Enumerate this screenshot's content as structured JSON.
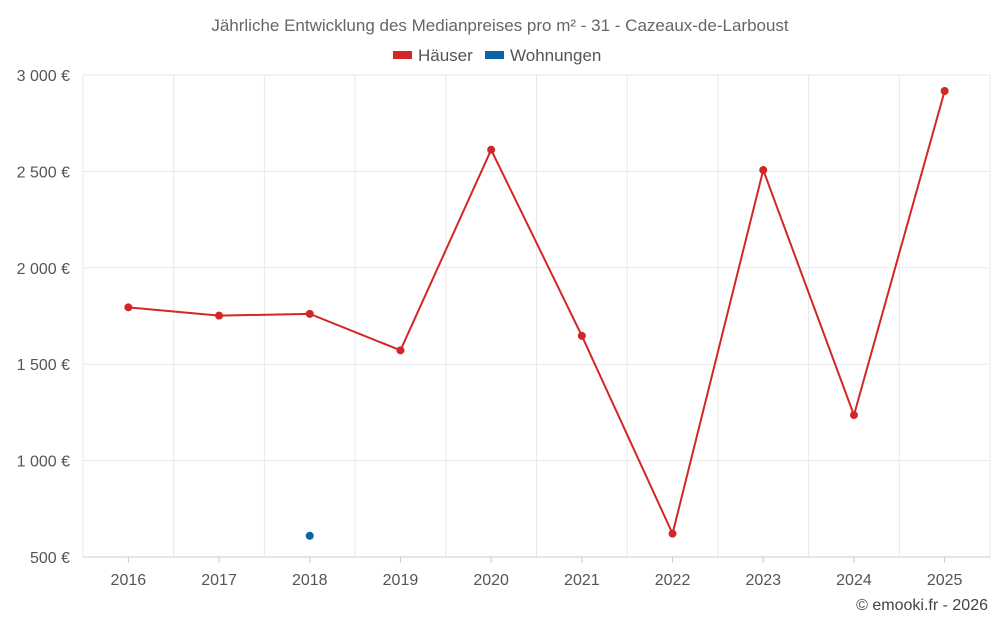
{
  "chart_data": {
    "type": "line",
    "title": "Jährliche Entwicklung des Medianpreises pro m² - 31 - Cazeaux-de-Larboust",
    "categories": [
      "2016",
      "2017",
      "2018",
      "2019",
      "2020",
      "2021",
      "2022",
      "2023",
      "2024",
      "2025"
    ],
    "series": [
      {
        "name": "Häuser",
        "color": "#d32626",
        "values": [
          1795,
          1752,
          1761,
          1572,
          2612,
          1647,
          621,
          2507,
          1236,
          2917
        ]
      },
      {
        "name": "Wohnungen",
        "color": "#0b62a4",
        "values": [
          null,
          null,
          610,
          null,
          null,
          null,
          null,
          null,
          null,
          null
        ]
      }
    ],
    "y_ticks": [
      "500 €",
      "1 000 €",
      "1 500 €",
      "2 000 €",
      "2 500 €",
      "3 000 €"
    ],
    "y_tick_values": [
      500,
      1000,
      1500,
      2000,
      2500,
      3000
    ],
    "ylim": [
      500,
      3000
    ],
    "grid": true,
    "legend_position": "top-center"
  },
  "credit": "© emooki.fr - 2026"
}
